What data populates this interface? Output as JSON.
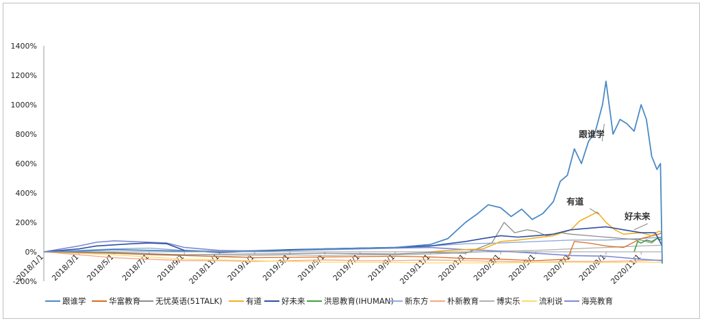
{
  "chart_data": {
    "type": "line",
    "y_ticks": [
      "1400%",
      "1200%",
      "1000%",
      "800%",
      "600%",
      "400%",
      "200%",
      "0%",
      "-200%"
    ],
    "y_tick_values": [
      1400,
      1200,
      1000,
      800,
      600,
      400,
      200,
      0,
      -200
    ],
    "ylim": [
      -200,
      1400
    ],
    "x_ticks": [
      "2018/1/1",
      "2018/3/1",
      "2018/5/1",
      "2018/7/1",
      "2018/9/1",
      "2018/11/1",
      "2019/1/1",
      "2019/3/1",
      "2019/5/1",
      "2019/7/1",
      "2019/9/1",
      "2019/11/1",
      "2020/1/1",
      "2020/3/1",
      "2020/5/1",
      "2020/7/1",
      "2020/9/1",
      "2020/11/1"
    ],
    "x_tick_months": [
      0,
      2,
      4,
      6,
      8,
      10,
      12,
      14,
      16,
      18,
      20,
      22,
      24,
      26,
      28,
      30,
      32,
      34
    ],
    "xlim_months": [
      0,
      35.2
    ],
    "legend_position": "bottom",
    "annotations": [
      {
        "text": "跟谁学",
        "x": 31.9,
        "y": 870,
        "tx": 31.0,
        "ty": 780
      },
      {
        "text": "有道",
        "x": 31.6,
        "y": 255,
        "tx": 30.3,
        "ty": 322
      },
      {
        "text": "好未来",
        "x": 33.6,
        "y": 150,
        "tx": 33.6,
        "ty": 220
      }
    ],
    "series": [
      {
        "name": "跟谁学",
        "color": "#4a89c5",
        "width": 1.8,
        "points": [
          [
            0,
            0
          ],
          [
            2,
            5
          ],
          [
            4,
            15
          ],
          [
            6,
            10
          ],
          [
            8,
            5
          ],
          [
            10,
            0
          ],
          [
            12,
            5
          ],
          [
            14,
            10
          ],
          [
            16,
            20
          ],
          [
            18,
            25
          ],
          [
            20,
            30
          ],
          [
            22,
            50
          ],
          [
            23,
            90
          ],
          [
            24,
            200
          ],
          [
            24.7,
            260
          ],
          [
            25.3,
            320
          ],
          [
            26,
            300
          ],
          [
            26.6,
            240
          ],
          [
            27.2,
            290
          ],
          [
            27.8,
            220
          ],
          [
            28.4,
            260
          ],
          [
            29.0,
            340
          ],
          [
            29.4,
            480
          ],
          [
            29.8,
            520
          ],
          [
            30.2,
            700
          ],
          [
            30.6,
            600
          ],
          [
            31.0,
            750
          ],
          [
            31.4,
            820
          ],
          [
            31.8,
            1000
          ],
          [
            32.0,
            1160
          ],
          [
            32.4,
            800
          ],
          [
            32.8,
            900
          ],
          [
            33.2,
            870
          ],
          [
            33.6,
            820
          ],
          [
            34.0,
            1000
          ],
          [
            34.3,
            900
          ],
          [
            34.6,
            650
          ],
          [
            34.9,
            560
          ],
          [
            35.1,
            600
          ],
          [
            35.2,
            -80
          ]
        ]
      },
      {
        "name": "华富教育",
        "color": "#d86b1c",
        "width": 1.3,
        "points": [
          [
            0,
            0
          ],
          [
            4,
            -10
          ],
          [
            8,
            -25
          ],
          [
            12,
            -40
          ],
          [
            16,
            -35
          ],
          [
            20,
            -30
          ],
          [
            22,
            -35
          ],
          [
            24,
            -45
          ],
          [
            26,
            -50
          ],
          [
            28,
            -60
          ],
          [
            29.8,
            -50
          ],
          [
            30.2,
            70
          ],
          [
            31,
            60
          ],
          [
            32,
            40
          ],
          [
            33,
            30
          ],
          [
            34,
            90
          ],
          [
            35,
            120
          ],
          [
            35.2,
            130
          ]
        ]
      },
      {
        "name": "无忧英语(51TALK)",
        "color": "#8c8c8c",
        "width": 1.3,
        "points": [
          [
            0,
            0
          ],
          [
            4,
            -5
          ],
          [
            8,
            -20
          ],
          [
            12,
            -15
          ],
          [
            16,
            -10
          ],
          [
            20,
            -15
          ],
          [
            22,
            -5
          ],
          [
            24,
            -10
          ],
          [
            25.5,
            60
          ],
          [
            26.2,
            200
          ],
          [
            26.8,
            130
          ],
          [
            27.5,
            150
          ],
          [
            28,
            140
          ],
          [
            28.6,
            110
          ],
          [
            29.4,
            130
          ],
          [
            30,
            120
          ],
          [
            31,
            110
          ],
          [
            32,
            100
          ],
          [
            33,
            90
          ],
          [
            34,
            80
          ],
          [
            34.6,
            60
          ],
          [
            35,
            100
          ],
          [
            35.2,
            90
          ]
        ]
      },
      {
        "name": "有道",
        "color": "#f1b021",
        "width": 1.6,
        "points": [
          [
            22,
            0
          ],
          [
            23,
            10
          ],
          [
            24,
            15
          ],
          [
            25,
            20
          ],
          [
            26,
            70
          ],
          [
            27,
            80
          ],
          [
            28,
            95
          ],
          [
            29,
            110
          ],
          [
            30,
            150
          ],
          [
            30.5,
            210
          ],
          [
            31.0,
            240
          ],
          [
            31.5,
            270
          ],
          [
            32,
            200
          ],
          [
            32.5,
            150
          ],
          [
            33,
            120
          ],
          [
            34,
            130
          ],
          [
            34.6,
            110
          ],
          [
            35,
            140
          ],
          [
            35.2,
            135
          ]
        ]
      },
      {
        "name": "好未来",
        "color": "#2e4fa0",
        "width": 1.6,
        "points": [
          [
            0,
            0
          ],
          [
            2,
            20
          ],
          [
            3,
            40
          ],
          [
            5,
            55
          ],
          [
            6,
            60
          ],
          [
            7,
            55
          ],
          [
            8,
            10
          ],
          [
            10,
            -5
          ],
          [
            12,
            5
          ],
          [
            14,
            15
          ],
          [
            16,
            20
          ],
          [
            18,
            25
          ],
          [
            20,
            30
          ],
          [
            22,
            40
          ],
          [
            24,
            70
          ],
          [
            25,
            90
          ],
          [
            26,
            110
          ],
          [
            27,
            100
          ],
          [
            28,
            110
          ],
          [
            29,
            120
          ],
          [
            30,
            150
          ],
          [
            31,
            160
          ],
          [
            32,
            170
          ],
          [
            33,
            150
          ],
          [
            34,
            130
          ],
          [
            34.8,
            130
          ],
          [
            35.2,
            40
          ]
        ]
      },
      {
        "name": "洪恩教育(IHUMAN)",
        "color": "#3ba03b",
        "width": 1.6,
        "points": [
          [
            33.6,
            0
          ],
          [
            33.8,
            70
          ],
          [
            34.0,
            60
          ],
          [
            34.3,
            80
          ],
          [
            34.6,
            70
          ],
          [
            34.9,
            90
          ],
          [
            35.2,
            80
          ]
        ]
      },
      {
        "name": "新东方",
        "color": "#8eaadb",
        "width": 1.4,
        "points": [
          [
            0,
            0
          ],
          [
            2,
            10
          ],
          [
            4,
            20
          ],
          [
            6,
            25
          ],
          [
            8,
            10
          ],
          [
            10,
            5
          ],
          [
            12,
            10
          ],
          [
            14,
            15
          ],
          [
            16,
            20
          ],
          [
            18,
            25
          ],
          [
            20,
            30
          ],
          [
            22,
            40
          ],
          [
            24,
            55
          ],
          [
            26,
            60
          ],
          [
            28,
            70
          ],
          [
            30,
            80
          ],
          [
            32,
            80
          ],
          [
            34,
            90
          ],
          [
            35.2,
            100
          ]
        ]
      },
      {
        "name": "朴新教育",
        "color": "#f4a582",
        "width": 1.3,
        "points": [
          [
            0,
            0
          ],
          [
            2,
            -20
          ],
          [
            4,
            -40
          ],
          [
            6,
            -50
          ],
          [
            8,
            -60
          ],
          [
            10,
            -60
          ],
          [
            12,
            -65
          ],
          [
            14,
            -60
          ],
          [
            16,
            -55
          ],
          [
            18,
            -60
          ],
          [
            20,
            -60
          ],
          [
            22,
            -55
          ],
          [
            24,
            -60
          ],
          [
            26,
            -65
          ],
          [
            28,
            -70
          ],
          [
            30,
            -65
          ],
          [
            32,
            -65
          ],
          [
            34,
            -60
          ],
          [
            35.2,
            -55
          ]
        ]
      },
      {
        "name": "博实乐",
        "color": "#b0b0b0",
        "width": 1.3,
        "points": [
          [
            0,
            0
          ],
          [
            2,
            -5
          ],
          [
            4,
            -10
          ],
          [
            6,
            -20
          ],
          [
            8,
            -25
          ],
          [
            10,
            -30
          ],
          [
            12,
            -25
          ],
          [
            14,
            -20
          ],
          [
            16,
            -25
          ],
          [
            18,
            -20
          ],
          [
            20,
            -20
          ],
          [
            22,
            -15
          ],
          [
            24,
            -5
          ],
          [
            26,
            5
          ],
          [
            28,
            10
          ],
          [
            30,
            20
          ],
          [
            32,
            30
          ],
          [
            34,
            40
          ],
          [
            35.2,
            45
          ]
        ]
      },
      {
        "name": "流利说",
        "color": "#ffd966",
        "width": 1.3,
        "points": [
          [
            0,
            0
          ],
          [
            2,
            -10
          ],
          [
            4,
            -20
          ],
          [
            6,
            -35
          ],
          [
            8,
            -50
          ],
          [
            10,
            -55
          ],
          [
            12,
            -60
          ],
          [
            14,
            -65
          ],
          [
            16,
            -70
          ],
          [
            18,
            -70
          ],
          [
            20,
            -72
          ],
          [
            22,
            -75
          ],
          [
            24,
            -75
          ],
          [
            26,
            -75
          ],
          [
            28,
            -72
          ],
          [
            30,
            -70
          ],
          [
            32,
            -72
          ],
          [
            34,
            -70
          ],
          [
            35.2,
            -72
          ]
        ]
      },
      {
        "name": "海亮教育",
        "color": "#7b89d6",
        "width": 1.6,
        "points": [
          [
            0,
            0
          ],
          [
            1,
            20
          ],
          [
            2,
            40
          ],
          [
            3,
            65
          ],
          [
            4,
            75
          ],
          [
            5,
            70
          ],
          [
            6,
            65
          ],
          [
            7,
            60
          ],
          [
            8,
            30
          ],
          [
            10,
            10
          ],
          [
            12,
            5
          ],
          [
            14,
            10
          ],
          [
            16,
            15
          ],
          [
            18,
            20
          ],
          [
            20,
            25
          ],
          [
            22,
            30
          ],
          [
            24,
            15
          ],
          [
            26,
            5
          ],
          [
            28,
            -10
          ],
          [
            30,
            -25
          ],
          [
            32,
            -30
          ],
          [
            34,
            -50
          ],
          [
            35.2,
            -60
          ]
        ]
      }
    ]
  }
}
